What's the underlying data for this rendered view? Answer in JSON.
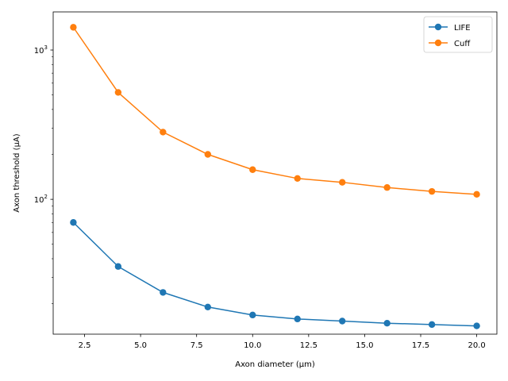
{
  "chart_data": {
    "type": "line",
    "xlabel": "Axon diameter (μm)",
    "ylabel": "Axon threshold (μA)",
    "x": [
      2,
      4,
      6,
      8,
      10,
      12,
      14,
      16,
      18,
      20
    ],
    "xlim": [
      1.1,
      20.9
    ],
    "ylim": [
      12.5,
      1800
    ],
    "yscale": "log",
    "x_ticks": [
      2.5,
      5.0,
      7.5,
      10.0,
      12.5,
      15.0,
      17.5,
      20.0
    ],
    "x_tick_labels": [
      "2.5",
      "5.0",
      "7.5",
      "10.0",
      "12.5",
      "15.0",
      "17.5",
      "20.0"
    ],
    "y_major_ticks": [
      100,
      1000
    ],
    "y_tick_labels": {
      "base": "10",
      "exponents": [
        "2",
        "3"
      ]
    },
    "grid": false,
    "legend_position": "top-right",
    "series": [
      {
        "name": "LIFE",
        "color": "#1f77b4",
        "values": [
          70,
          35.5,
          23.8,
          19,
          16.8,
          15.8,
          15.3,
          14.8,
          14.5,
          14.2
        ]
      },
      {
        "name": "Cuff",
        "color": "#ff7f0e",
        "values": [
          1420,
          520,
          282,
          200,
          158,
          138,
          130,
          120,
          113,
          108
        ]
      }
    ]
  }
}
